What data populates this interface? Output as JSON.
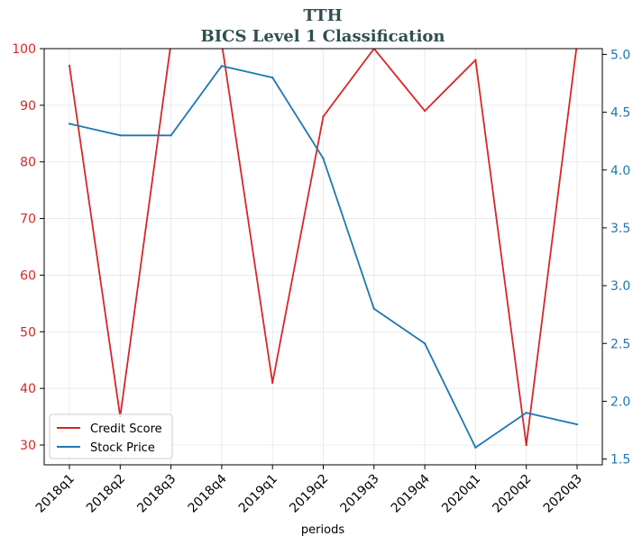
{
  "chart_data": {
    "type": "line",
    "title": "TTH",
    "subtitle": "BICS Level 1 Classification",
    "xlabel": "periods",
    "categories": [
      "2018q1",
      "2018q2",
      "2018q3",
      "2018q4",
      "2019q1",
      "2019q2",
      "2019q3",
      "2019q4",
      "2020q1",
      "2020q2",
      "2020q3"
    ],
    "series": [
      {
        "name": "Credit Score",
        "axis": "left",
        "color": "#d62728",
        "values": [
          97,
          35,
          101,
          101,
          41,
          88,
          100,
          89,
          98,
          30,
          101
        ]
      },
      {
        "name": "Stock Price",
        "axis": "right",
        "color": "#1f77b4",
        "values": [
          4.4,
          4.3,
          4.3,
          4.9,
          4.8,
          4.1,
          2.8,
          2.5,
          1.6,
          1.9,
          1.8
        ]
      }
    ],
    "y_left": {
      "ylim": [
        26.5,
        100
      ],
      "ticks": [
        "30",
        "40",
        "50",
        "60",
        "70",
        "80",
        "90",
        "100"
      ],
      "color": "#d62728"
    },
    "y_right": {
      "ylim": [
        1.45,
        5.05
      ],
      "ticks": [
        "1.5",
        "2.0",
        "2.5",
        "3.0",
        "3.5",
        "4.0",
        "4.5",
        "5.0"
      ],
      "color": "#1f77b4"
    },
    "grid": true,
    "legend": {
      "position": "lower-left",
      "entries": [
        "Credit Score",
        "Stock Price"
      ]
    }
  }
}
